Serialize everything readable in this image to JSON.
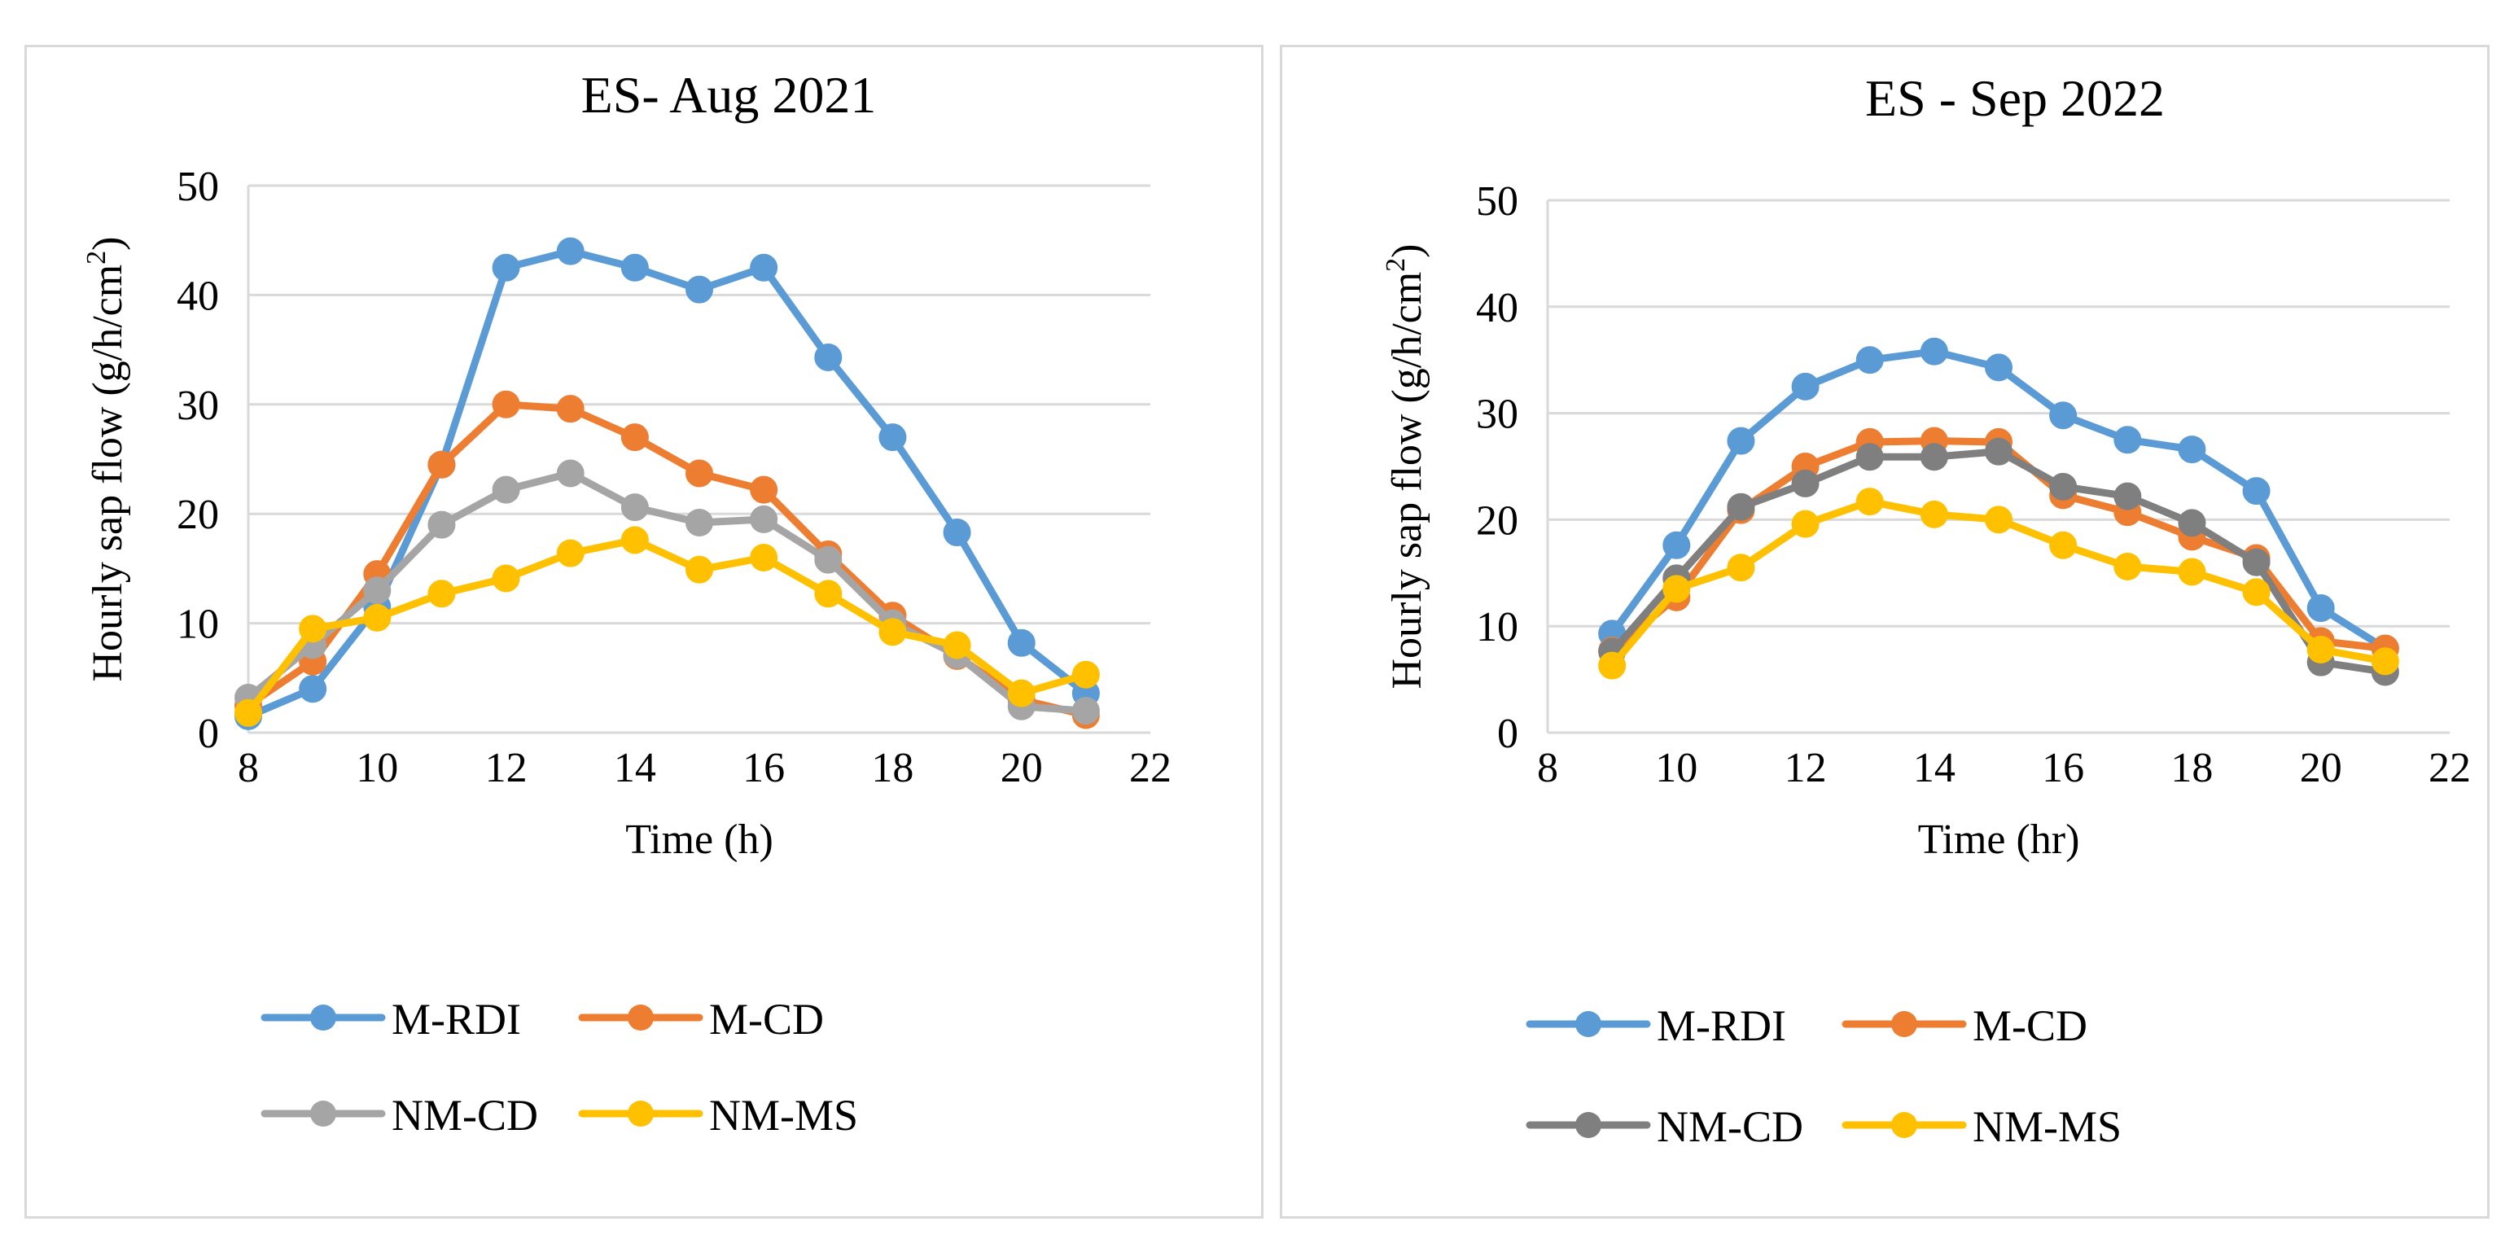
{
  "chart_data": [
    {
      "type": "line",
      "title": "ES- Aug 2021",
      "xlabel": "Time (h)",
      "ylabel_main": "Hourly sap flow (g/h/cm",
      "ylabel_sup": "2",
      "ylabel_close": ")",
      "xlim": [
        8,
        22
      ],
      "ylim": [
        0,
        50
      ],
      "xticks": [
        8,
        10,
        12,
        14,
        16,
        18,
        20,
        22
      ],
      "yticks": [
        0,
        10,
        20,
        30,
        40,
        50
      ],
      "grid": "horizontal",
      "legend_position": "bottom",
      "series": [
        {
          "name": "M-RDI",
          "color": "#5B9BD5",
          "x": [
            8,
            9,
            10,
            11,
            12,
            13,
            14,
            15,
            16,
            17,
            18,
            19,
            20,
            21
          ],
          "values": [
            1.5,
            4,
            11.5,
            24.5,
            42.5,
            44,
            42.5,
            40.5,
            42.5,
            34.3,
            27,
            18.3,
            8.2,
            3.6
          ]
        },
        {
          "name": "M-CD",
          "color": "#ED7D31",
          "x": [
            8,
            9,
            10,
            11,
            12,
            13,
            14,
            15,
            16,
            17,
            18,
            19,
            20,
            21
          ],
          "values": [
            2.5,
            6.5,
            14.5,
            24.5,
            30,
            29.6,
            27,
            23.7,
            22.2,
            16.3,
            10.7,
            7,
            3,
            1.6
          ]
        },
        {
          "name": "NM-CD",
          "color": "#A5A5A5",
          "x": [
            8,
            9,
            10,
            11,
            12,
            13,
            14,
            15,
            16,
            17,
            18,
            19,
            20,
            21
          ],
          "values": [
            3.2,
            8,
            13,
            19,
            22.2,
            23.7,
            20.6,
            19.2,
            19.5,
            15.8,
            10,
            7.1,
            2.4,
            2
          ]
        },
        {
          "name": "NM-MS",
          "color": "#FFC000",
          "x": [
            8,
            9,
            10,
            11,
            12,
            13,
            14,
            15,
            16,
            17,
            18,
            19,
            20,
            21
          ],
          "values": [
            1.8,
            9.5,
            10.5,
            12.7,
            14.1,
            16.4,
            17.6,
            14.9,
            16,
            12.7,
            9.2,
            8,
            3.6,
            5.3
          ]
        }
      ]
    },
    {
      "type": "line",
      "title": "ES - Sep 2022",
      "xlabel": "Time (hr)",
      "ylabel_main": "Hourly sap flow (g/h/cm",
      "ylabel_sup": "2",
      "ylabel_close": ")",
      "xlim": [
        8,
        22
      ],
      "ylim": [
        0,
        50
      ],
      "xticks": [
        8,
        10,
        12,
        14,
        16,
        18,
        20,
        22
      ],
      "yticks": [
        0,
        10,
        20,
        30,
        40,
        50
      ],
      "grid": "horizontal",
      "legend_position": "bottom",
      "series": [
        {
          "name": "M-RDI",
          "color": "#5B9BD5",
          "x": [
            9,
            10,
            11,
            12,
            13,
            14,
            15,
            16,
            17,
            18,
            19,
            20,
            21
          ],
          "values": [
            9.3,
            17.6,
            27.4,
            32.5,
            35,
            35.8,
            34.3,
            29.8,
            27.5,
            26.6,
            22.7,
            11.7,
            7.9
          ]
        },
        {
          "name": "M-CD",
          "color": "#ED7D31",
          "x": [
            9,
            10,
            11,
            12,
            13,
            14,
            15,
            16,
            17,
            18,
            19,
            20,
            21
          ],
          "values": [
            7.7,
            12.7,
            20.9,
            25,
            27.3,
            27.4,
            27.3,
            22.3,
            20.7,
            18.4,
            16.4,
            8.6,
            7.9
          ]
        },
        {
          "name": "NM-CD",
          "color": "#7F7F7F",
          "x": [
            9,
            10,
            11,
            12,
            13,
            14,
            15,
            16,
            17,
            18,
            19,
            20,
            21
          ],
          "values": [
            7.6,
            14.5,
            21.2,
            23.4,
            25.9,
            25.9,
            26.4,
            23.1,
            22.2,
            19.7,
            16,
            6.6,
            5.7
          ]
        },
        {
          "name": "NM-MS",
          "color": "#FFC000",
          "x": [
            9,
            10,
            11,
            12,
            13,
            14,
            15,
            16,
            17,
            18,
            19,
            20,
            21
          ],
          "values": [
            6.3,
            13.5,
            15.5,
            19.6,
            21.7,
            20.5,
            20,
            17.6,
            15.6,
            15.1,
            13.2,
            7.8,
            6.7
          ]
        }
      ]
    }
  ]
}
